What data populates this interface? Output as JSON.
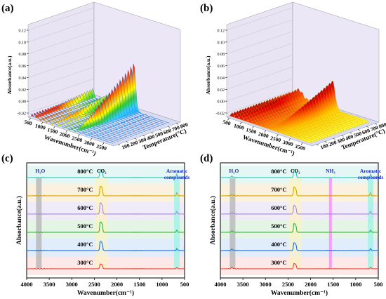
{
  "panels": {
    "a": "(a)",
    "b": "(b)",
    "c": "(c)",
    "d": "(d)"
  },
  "chart_data": [
    {
      "panel": "(a)",
      "type": "area",
      "xlabel": "Wavenumber(cm⁻¹)",
      "ylabel": "Temperature(°C)",
      "zlabel": "Absorbance(a.u.)",
      "x_ticks": [
        "500",
        "1000",
        "1500",
        "2000",
        "2500",
        "3000",
        "3500"
      ],
      "y_ticks": [
        "100",
        "200",
        "300",
        "400",
        "500",
        "600",
        "700",
        "800"
      ],
      "z_ticks": [
        "-0.02",
        "0.00",
        "0.02",
        "0.04",
        "0.06",
        "0.08",
        "0.10",
        "0.12"
      ],
      "colormap": [
        "#1a3cff",
        "#1aa3ff",
        "#33d6ff",
        "#33cc33",
        "#ffff00",
        "#ff8000",
        "#e60000"
      ],
      "peaks": [
        {
          "wavenumber": 2350,
          "temperature": 800,
          "absorbance": 0.075
        },
        {
          "wavenumber": 1500,
          "temperature": 800,
          "absorbance": 0.02
        },
        {
          "wavenumber": 670,
          "temperature": 800,
          "absorbance": 0.01
        }
      ]
    },
    {
      "panel": "(b)",
      "type": "area",
      "xlabel": "Wavenumber(cm⁻¹)",
      "ylabel": "Temperature(°C)",
      "zlabel": "Absorbance(a.u.)",
      "x_ticks": [
        "500",
        "1000",
        "1500",
        "2000",
        "2500",
        "3000",
        "3500"
      ],
      "y_ticks": [
        "100",
        "200",
        "300",
        "400",
        "500",
        "600",
        "700",
        "800"
      ],
      "z_ticks": [
        "-0.02",
        "0.00",
        "0.02",
        "0.04",
        "0.06",
        "0.08",
        "0.10",
        "0.12"
      ],
      "colormap": [
        "#1a3cff",
        "#33ccff",
        "#ffff00",
        "#ffb300",
        "#ff6600",
        "#e60000",
        "#a00000"
      ],
      "peaks": [
        {
          "wavenumber": 2350,
          "temperature": 800,
          "absorbance": 0.04
        },
        {
          "wavenumber": 1000,
          "temperature": 800,
          "absorbance": 0.01
        }
      ]
    },
    {
      "panel": "(c)",
      "type": "line",
      "xlabel": "Wavenumber(cm⁻¹)",
      "ylabel": "Absorbance(a.u.)",
      "xlim": [
        4000,
        500
      ],
      "x_ticks": [
        "4000",
        "3500",
        "3000",
        "2500",
        "2000",
        "1500",
        "1000",
        "500"
      ],
      "annotations": [
        {
          "text": "H₂O",
          "x": 3730,
          "band_color": "#b3b3b3"
        },
        {
          "text": "CO₂",
          "x": 2340,
          "band_color": "#fff4b3"
        },
        {
          "text": "Aromatic",
          "x": 670,
          "band_color": "#99f2e6"
        },
        {
          "text": "compounds",
          "x": 670
        }
      ],
      "series": [
        {
          "name": "300°C",
          "color": "#e8483c",
          "offset": 0.5,
          "peak": 0.55
        },
        {
          "name": "400°C",
          "color": "#1f6fd1",
          "offset": 1.5,
          "peak": 1.05
        },
        {
          "name": "500°C",
          "color": "#3cb043",
          "offset": 2.5,
          "peak": 1.2
        },
        {
          "name": "600°C",
          "color": "#a78bd6",
          "offset": 3.5,
          "peak": 1.3
        },
        {
          "name": "700°C",
          "color": "#d9a300",
          "offset": 4.5,
          "peak": 1.1
        },
        {
          "name": "800°C",
          "color": "#2ec4b6",
          "offset": 5.5,
          "peak": 0.9
        }
      ]
    },
    {
      "panel": "(d)",
      "type": "line",
      "xlabel": "Wavenumber(cm⁻¹)",
      "ylabel": "Absorbance(a.u.)",
      "xlim": [
        4000,
        500
      ],
      "x_ticks": [
        "4000",
        "3500",
        "3000",
        "2500",
        "2000",
        "1500",
        "1000",
        "500"
      ],
      "annotations": [
        {
          "text": "H₂O",
          "x": 3730,
          "band_color": "#b3b3b3"
        },
        {
          "text": "CO₂",
          "x": 2340,
          "band_color": "#fff4b3"
        },
        {
          "text": "NH₃",
          "x": 1560,
          "band_color": "#ff80ff"
        },
        {
          "text": "Aromatic",
          "x": 670,
          "band_color": "#99f2e6"
        },
        {
          "text": "compounds",
          "x": 670
        }
      ],
      "series": [
        {
          "name": "300°C",
          "color": "#e8483c",
          "offset": 0.5,
          "peak": 0.6
        },
        {
          "name": "400°C",
          "color": "#1f6fd1",
          "offset": 1.5,
          "peak": 0.9
        },
        {
          "name": "500°C",
          "color": "#3cb043",
          "offset": 2.5,
          "peak": 1.0
        },
        {
          "name": "600°C",
          "color": "#a78bd6",
          "offset": 3.5,
          "peak": 1.0
        },
        {
          "name": "700°C",
          "color": "#d9a300",
          "offset": 4.5,
          "peak": 1.0
        },
        {
          "name": "800°C",
          "color": "#2ec4b6",
          "offset": 5.5,
          "peak": 0.9
        }
      ]
    }
  ]
}
